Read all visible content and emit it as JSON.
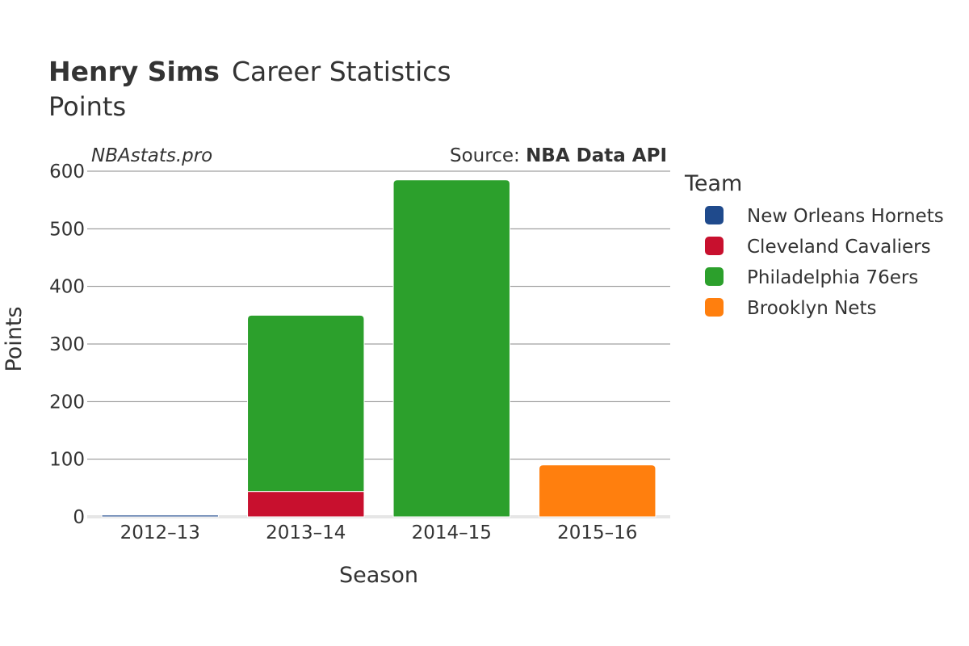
{
  "header": {
    "player_name": "Henry Sims",
    "title_suffix": "Career Statistics",
    "subtitle": "Points"
  },
  "watermark": "NBAstats.pro",
  "source": {
    "prefix": "Source: ",
    "name": "NBA Data API"
  },
  "legend": {
    "title": "Team"
  },
  "chart_data": {
    "type": "bar",
    "stacked": true,
    "title": "Henry Sims Career Statistics",
    "subtitle": "Points",
    "xlabel": "Season",
    "ylabel": "Points",
    "ylim": [
      0,
      600
    ],
    "yticks": [
      0,
      100,
      200,
      300,
      400,
      500,
      600
    ],
    "grid": true,
    "legend_position": "right",
    "categories": [
      "2012–13",
      "2013–14",
      "2014–15",
      "2015–16"
    ],
    "series": [
      {
        "name": "New Orleans Hornets",
        "color": "#1f4a8c",
        "values": [
          3,
          0,
          0,
          0
        ]
      },
      {
        "name": "Cleveland Cavaliers",
        "color": "#c8102e",
        "values": [
          0,
          44,
          0,
          0
        ]
      },
      {
        "name": "Philadelphia 76ers",
        "color": "#2ca02c",
        "values": [
          0,
          306,
          585,
          0
        ]
      },
      {
        "name": "Brooklyn Nets",
        "color": "#ff7f0e",
        "values": [
          0,
          0,
          0,
          90
        ]
      }
    ]
  }
}
